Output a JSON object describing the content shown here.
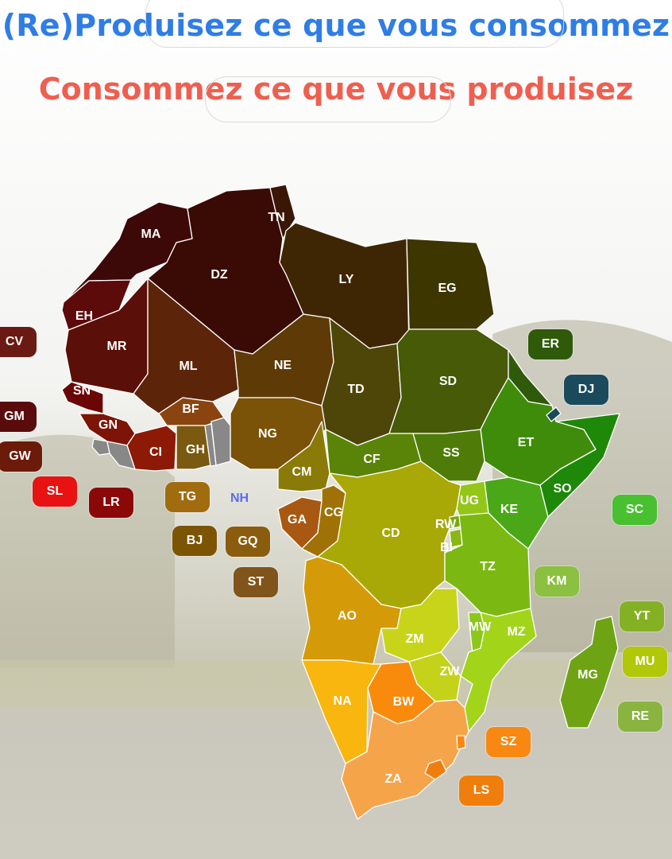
{
  "title": "(Re)Produisez ce que vous consommez",
  "subtitle": "Consommez ce que vous produisez",
  "nh_label": "NH",
  "countries": [
    {
      "code": "MA",
      "color": "#3d0808"
    },
    {
      "code": "DZ",
      "color": "#3a0a04"
    },
    {
      "code": "TN",
      "color": "#3a1606"
    },
    {
      "code": "LY",
      "color": "#3e2604"
    },
    {
      "code": "EG",
      "color": "#3d3600"
    },
    {
      "code": "EH",
      "color": "#5c0a0a"
    },
    {
      "code": "MR",
      "color": "#5a0f08"
    },
    {
      "code": "ML",
      "color": "#5c250a"
    },
    {
      "code": "NE",
      "color": "#5e3a06"
    },
    {
      "code": "TD",
      "color": "#4e4508"
    },
    {
      "code": "SD",
      "color": "#465a08"
    },
    {
      "code": "ER",
      "color": "#2f5a0a"
    },
    {
      "code": "SN",
      "color": "#6b0606"
    },
    {
      "code": "GN",
      "color": "#7c1408"
    },
    {
      "code": "BF",
      "color": "#8a4410"
    },
    {
      "code": "NG",
      "color": "#7a5208"
    },
    {
      "code": "CI",
      "color": "#8c1a06"
    },
    {
      "code": "GH",
      "color": "#7a5a10"
    },
    {
      "code": "ET",
      "color": "#3f8c0a"
    },
    {
      "code": "SO",
      "color": "#1e8808"
    },
    {
      "code": "CF",
      "color": "#5a8408"
    },
    {
      "code": "SS",
      "color": "#4f7c08"
    },
    {
      "code": "CM",
      "color": "#8a7a08"
    },
    {
      "code": "GA",
      "color": "#a85812"
    },
    {
      "code": "CG",
      "color": "#a07206"
    },
    {
      "code": "CD",
      "color": "#a8a806"
    },
    {
      "code": "UG",
      "color": "#94c61a"
    },
    {
      "code": "KE",
      "color": "#4aa818"
    },
    {
      "code": "RW",
      "color": "#7aa810"
    },
    {
      "code": "BI",
      "color": "#88b812"
    },
    {
      "code": "TZ",
      "color": "#7cb812"
    },
    {
      "code": "AO",
      "color": "#d49a08"
    },
    {
      "code": "ZM",
      "color": "#c8d41a"
    },
    {
      "code": "MW",
      "color": "#8cc81a"
    },
    {
      "code": "MZ",
      "color": "#a2d41a"
    },
    {
      "code": "ZW",
      "color": "#c4d21a"
    },
    {
      "code": "NA",
      "color": "#f8b60e"
    },
    {
      "code": "BW",
      "color": "#f88a0c"
    },
    {
      "code": "ZA",
      "color": "#f6a44a"
    },
    {
      "code": "MG",
      "color": "#6ea414"
    }
  ],
  "chips": [
    {
      "code": "CV",
      "color": "#6a1a12"
    },
    {
      "code": "GM",
      "color": "#5a0c0c"
    },
    {
      "code": "GW",
      "color": "#6c1a0a"
    },
    {
      "code": "SL",
      "color": "#e81212"
    },
    {
      "code": "LR",
      "color": "#8a0808"
    },
    {
      "code": "TG",
      "color": "#a06c0e"
    },
    {
      "code": "BJ",
      "color": "#7c5404"
    },
    {
      "code": "GQ",
      "color": "#8a5c0e"
    },
    {
      "code": "ST",
      "color": "#80541a"
    },
    {
      "code": "ER",
      "color": "#2f5a0a"
    },
    {
      "code": "DJ",
      "color": "#1a4a5c"
    },
    {
      "code": "SC",
      "color": "#48c030"
    },
    {
      "code": "KM",
      "color": "#8cc040"
    },
    {
      "code": "YT",
      "color": "#84b024"
    },
    {
      "code": "MU",
      "color": "#b0c808"
    },
    {
      "code": "RE",
      "color": "#8ab440"
    },
    {
      "code": "SZ",
      "color": "#f88812"
    },
    {
      "code": "LS",
      "color": "#f07e0c"
    }
  ]
}
